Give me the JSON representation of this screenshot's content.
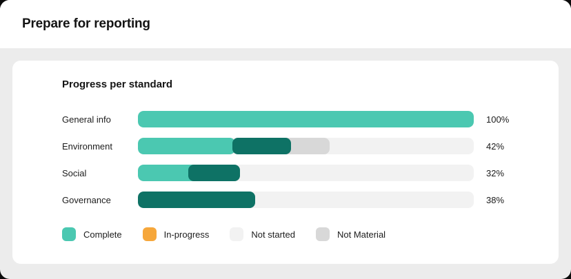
{
  "header": {
    "title": "Prepare for reporting"
  },
  "card": {
    "title": "Progress per standard"
  },
  "colors": {
    "complete": "#4BC8B1",
    "complete_dark": "#0E7265",
    "in_progress": "#F6A73B",
    "not_started": "#F2F2F2",
    "not_material": "#D8D8D8",
    "page_bg": "#ECECEC",
    "card_bg": "#FFFFFF",
    "text": "#1A1A1A"
  },
  "chart_data": {
    "type": "bar",
    "orientation": "horizontal",
    "title": "Progress per standard",
    "categories": [
      "General info",
      "Environment",
      "Social",
      "Governance"
    ],
    "values": [
      100,
      42,
      32,
      38
    ],
    "value_labels": [
      "100%",
      "42%",
      "32%",
      "38%"
    ],
    "xlim": [
      0,
      100
    ],
    "grid": false,
    "legend_position": "bottom",
    "rows": [
      {
        "label": "General info",
        "percent_label": "100%",
        "segments": [
          {
            "color": "complete",
            "left": 0,
            "width": 100,
            "z": 1
          }
        ]
      },
      {
        "label": "Environment",
        "percent_label": "42%",
        "segments": [
          {
            "color": "complete",
            "left": 0,
            "width": 29,
            "z": 1
          },
          {
            "color": "not_material",
            "left": 40,
            "width": 17.1,
            "z": 2
          },
          {
            "color": "complete_dark",
            "left": 28.1,
            "width": 17.5,
            "z": 3
          }
        ]
      },
      {
        "label": "Social",
        "percent_label": "32%",
        "segments": [
          {
            "color": "complete",
            "left": 0,
            "width": 19,
            "z": 1
          },
          {
            "color": "complete_dark",
            "left": 15,
            "width": 15.4,
            "z": 3
          }
        ]
      },
      {
        "label": "Governance",
        "percent_label": "38%",
        "segments": [
          {
            "color": "complete_dark",
            "left": 0,
            "width": 34.9,
            "z": 3
          }
        ]
      }
    ],
    "legend": [
      {
        "label": "Complete",
        "color": "complete"
      },
      {
        "label": "In-progress",
        "color": "in_progress"
      },
      {
        "label": "Not started",
        "color": "not_started"
      },
      {
        "label": "Not Material",
        "color": "not_material"
      }
    ]
  }
}
